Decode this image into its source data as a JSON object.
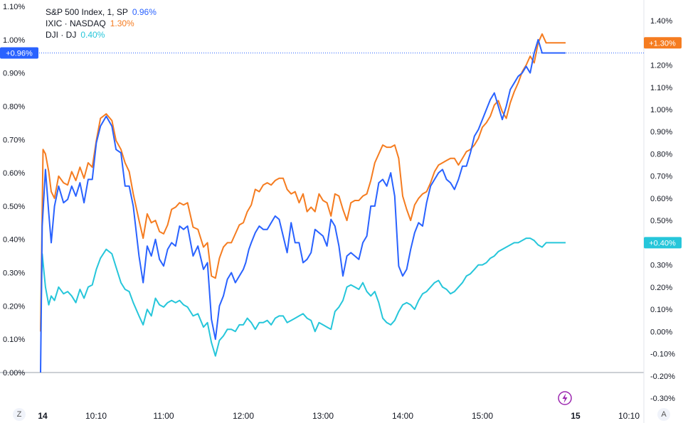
{
  "legend": {
    "spx": {
      "label": "S&P 500 Index, 1, SP",
      "value": "0.96%"
    },
    "ixic": {
      "label": "IXIC · NASDAQ",
      "value": "1.30%"
    },
    "dji": {
      "label": "DJI · DJ",
      "value": "0.40%"
    }
  },
  "badges": {
    "spx": "+0.96%",
    "ixic": "+1.30%",
    "dji": "+0.40%"
  },
  "buttons": {
    "left": "Z",
    "right": "A"
  },
  "chart_data": {
    "type": "line",
    "x_ticks": [
      "14",
      "10:10",
      "11:00",
      "12:00",
      "13:00",
      "14:00",
      "15:00",
      "15",
      "10:10"
    ],
    "left_axis": {
      "ticks": [
        "0.00%",
        "0.10%",
        "0.20%",
        "0.30%",
        "0.40%",
        "0.50%",
        "0.60%",
        "0.70%",
        "0.80%",
        "0.90%",
        "1.00%",
        "1.10%"
      ],
      "range": [
        0.0,
        1.1
      ]
    },
    "right_axis": {
      "ticks": [
        "-0.30%",
        "-0.20%",
        "-0.10%",
        "0.00%",
        "0.10%",
        "0.20%",
        "0.30%",
        "0.40%",
        "0.50%",
        "0.60%",
        "0.70%",
        "0.80%",
        "0.90%",
        "1.00%",
        "1.10%",
        "1.20%",
        "1.30%",
        "1.40%"
      ],
      "range": [
        -0.3,
        1.4
      ]
    },
    "x_range": [
      9.5,
      16.8
    ],
    "colors": {
      "spx": "#2962ff",
      "ixic": "#f57c20",
      "dji": "#26c6da",
      "badge_spx": "#2962ff",
      "badge_ixic": "#f57c20",
      "badge_dji": "#26c6da"
    },
    "series": [
      {
        "name": "S&P 500 Index, 1, SP",
        "key": "spx",
        "axis": "left",
        "x": [
          9.5,
          9.52,
          9.56,
          9.6,
          9.63,
          9.67,
          9.72,
          9.78,
          9.83,
          9.88,
          9.93,
          9.98,
          10.03,
          10.08,
          10.13,
          10.18,
          10.23,
          10.3,
          10.37,
          10.42,
          10.48,
          10.53,
          10.58,
          10.63,
          10.7,
          10.75,
          10.8,
          10.85,
          10.9,
          10.95,
          11.0,
          11.05,
          11.1,
          11.15,
          11.2,
          11.25,
          11.3,
          11.37,
          11.43,
          11.5,
          11.55,
          11.6,
          11.65,
          11.7,
          11.75,
          11.8,
          11.85,
          11.9,
          11.95,
          12.0,
          12.03,
          12.07,
          12.1,
          12.15,
          12.2,
          12.25,
          12.3,
          12.35,
          12.4,
          12.45,
          12.5,
          12.55,
          12.6,
          12.65,
          12.7,
          12.75,
          12.8,
          12.85,
          12.9,
          12.95,
          13.0,
          13.05,
          13.1,
          13.15,
          13.2,
          13.25,
          13.3,
          13.35,
          13.4,
          13.45,
          13.5,
          13.55,
          13.6,
          13.65,
          13.7,
          13.75,
          13.8,
          13.85,
          13.9,
          13.95,
          14.0,
          14.05,
          14.1,
          14.15,
          14.2,
          14.25,
          14.3,
          14.35,
          14.4,
          14.45,
          14.5,
          14.55,
          14.6,
          14.65,
          14.7,
          14.75,
          14.8,
          14.85,
          14.9,
          14.95,
          15.0,
          15.05,
          15.1,
          15.15,
          15.2,
          15.25,
          15.3,
          15.35,
          15.4,
          15.45,
          15.5,
          15.55,
          15.6,
          15.65,
          15.7,
          15.75,
          15.8,
          15.85
        ],
        "y": [
          0.0,
          0.44,
          0.61,
          0.48,
          0.39,
          0.5,
          0.56,
          0.51,
          0.52,
          0.56,
          0.53,
          0.57,
          0.51,
          0.58,
          0.58,
          0.69,
          0.74,
          0.77,
          0.74,
          0.67,
          0.66,
          0.56,
          0.56,
          0.5,
          0.35,
          0.27,
          0.38,
          0.35,
          0.4,
          0.34,
          0.32,
          0.37,
          0.39,
          0.38,
          0.44,
          0.43,
          0.44,
          0.35,
          0.38,
          0.31,
          0.33,
          0.16,
          0.1,
          0.2,
          0.23,
          0.28,
          0.3,
          0.27,
          0.29,
          0.31,
          0.33,
          0.37,
          0.39,
          0.42,
          0.44,
          0.43,
          0.43,
          0.45,
          0.47,
          0.46,
          0.41,
          0.36,
          0.45,
          0.39,
          0.39,
          0.33,
          0.34,
          0.36,
          0.43,
          0.42,
          0.41,
          0.38,
          0.46,
          0.44,
          0.38,
          0.29,
          0.35,
          0.36,
          0.35,
          0.34,
          0.39,
          0.41,
          0.5,
          0.5,
          0.57,
          0.58,
          0.56,
          0.6,
          0.53,
          0.32,
          0.29,
          0.31,
          0.37,
          0.42,
          0.45,
          0.44,
          0.51,
          0.56,
          0.58,
          0.6,
          0.61,
          0.58,
          0.57,
          0.55,
          0.58,
          0.62,
          0.62,
          0.66,
          0.71,
          0.73,
          0.76,
          0.79,
          0.82,
          0.84,
          0.8,
          0.76,
          0.8,
          0.85,
          0.87,
          0.89,
          0.9,
          0.92,
          0.9,
          0.96,
          1.0,
          0.96,
          0.96,
          0.96
        ]
      },
      {
        "name": "IXIC · NASDAQ",
        "key": "ixic",
        "axis": "right",
        "x": [
          9.5,
          9.53,
          9.56,
          9.6,
          9.63,
          9.67,
          9.72,
          9.78,
          9.83,
          9.88,
          9.93,
          9.98,
          10.03,
          10.08,
          10.13,
          10.18,
          10.23,
          10.3,
          10.37,
          10.42,
          10.48,
          10.53,
          10.58,
          10.63,
          10.7,
          10.75,
          10.8,
          10.85,
          10.9,
          10.95,
          11.0,
          11.05,
          11.1,
          11.15,
          11.2,
          11.25,
          11.3,
          11.37,
          11.43,
          11.5,
          11.55,
          11.6,
          11.65,
          11.7,
          11.75,
          11.8,
          11.85,
          11.9,
          11.95,
          12.0,
          12.05,
          12.1,
          12.15,
          12.2,
          12.25,
          12.3,
          12.35,
          12.4,
          12.45,
          12.5,
          12.55,
          12.6,
          12.65,
          12.7,
          12.75,
          12.8,
          12.85,
          12.9,
          12.95,
          13.0,
          13.05,
          13.1,
          13.15,
          13.2,
          13.25,
          13.3,
          13.35,
          13.4,
          13.45,
          13.5,
          13.55,
          13.6,
          13.65,
          13.7,
          13.75,
          13.8,
          13.85,
          13.9,
          13.95,
          14.0,
          14.05,
          14.1,
          14.15,
          14.2,
          14.25,
          14.3,
          14.35,
          14.4,
          14.45,
          14.5,
          14.55,
          14.6,
          14.65,
          14.7,
          14.75,
          14.8,
          14.85,
          14.9,
          14.95,
          15.0,
          15.05,
          15.1,
          15.15,
          15.2,
          15.25,
          15.3,
          15.35,
          15.4,
          15.45,
          15.5,
          15.55,
          15.6,
          15.65,
          15.7,
          15.75,
          15.8,
          15.85
        ],
        "y": [
          0.0,
          0.82,
          0.8,
          0.72,
          0.63,
          0.6,
          0.7,
          0.67,
          0.66,
          0.72,
          0.68,
          0.74,
          0.69,
          0.76,
          0.74,
          0.86,
          0.96,
          0.98,
          0.95,
          0.86,
          0.82,
          0.76,
          0.72,
          0.62,
          0.5,
          0.42,
          0.53,
          0.49,
          0.5,
          0.45,
          0.44,
          0.48,
          0.55,
          0.56,
          0.58,
          0.57,
          0.58,
          0.47,
          0.46,
          0.38,
          0.4,
          0.25,
          0.24,
          0.33,
          0.38,
          0.4,
          0.4,
          0.44,
          0.48,
          0.49,
          0.54,
          0.57,
          0.64,
          0.63,
          0.66,
          0.67,
          0.66,
          0.68,
          0.69,
          0.69,
          0.64,
          0.62,
          0.63,
          0.58,
          0.62,
          0.54,
          0.56,
          0.54,
          0.62,
          0.59,
          0.58,
          0.52,
          0.62,
          0.61,
          0.55,
          0.5,
          0.58,
          0.59,
          0.59,
          0.61,
          0.62,
          0.68,
          0.76,
          0.8,
          0.84,
          0.83,
          0.83,
          0.84,
          0.78,
          0.61,
          0.55,
          0.5,
          0.57,
          0.6,
          0.62,
          0.63,
          0.67,
          0.72,
          0.75,
          0.76,
          0.77,
          0.78,
          0.78,
          0.75,
          0.78,
          0.81,
          0.82,
          0.84,
          0.87,
          0.92,
          0.94,
          0.97,
          1.02,
          1.04,
          0.99,
          0.96,
          1.03,
          1.08,
          1.12,
          1.17,
          1.2,
          1.24,
          1.21,
          1.3,
          1.34,
          1.3,
          1.3
        ]
      },
      {
        "name": "DJI · DJ",
        "key": "dji",
        "axis": "right",
        "x": [
          9.5,
          9.52,
          9.56,
          9.6,
          9.63,
          9.67,
          9.72,
          9.78,
          9.83,
          9.88,
          9.93,
          9.98,
          10.03,
          10.08,
          10.13,
          10.18,
          10.23,
          10.3,
          10.37,
          10.42,
          10.48,
          10.53,
          10.58,
          10.63,
          10.7,
          10.75,
          10.8,
          10.85,
          10.9,
          10.95,
          11.0,
          11.05,
          11.1,
          11.15,
          11.2,
          11.25,
          11.3,
          11.37,
          11.43,
          11.5,
          11.55,
          11.6,
          11.65,
          11.7,
          11.75,
          11.8,
          11.85,
          11.9,
          11.95,
          12.0,
          12.05,
          12.1,
          12.15,
          12.2,
          12.25,
          12.3,
          12.35,
          12.4,
          12.45,
          12.5,
          12.55,
          12.6,
          12.65,
          12.7,
          12.75,
          12.8,
          12.85,
          12.9,
          12.95,
          13.0,
          13.05,
          13.1,
          13.15,
          13.2,
          13.25,
          13.3,
          13.35,
          13.4,
          13.45,
          13.5,
          13.55,
          13.6,
          13.65,
          13.7,
          13.75,
          13.8,
          13.85,
          13.9,
          13.95,
          14.0,
          14.05,
          14.1,
          14.15,
          14.2,
          14.25,
          14.3,
          14.35,
          14.4,
          14.45,
          14.5,
          14.55,
          14.6,
          14.65,
          14.7,
          14.75,
          14.8,
          14.85,
          14.9,
          14.95,
          15.0,
          15.05,
          15.1,
          15.15,
          15.2,
          15.25,
          15.3,
          15.35,
          15.4,
          15.45,
          15.5,
          15.55,
          15.6,
          15.65,
          15.7,
          15.75,
          15.8,
          15.85
        ],
        "y": [
          0.0,
          0.35,
          0.2,
          0.12,
          0.16,
          0.14,
          0.2,
          0.17,
          0.18,
          0.16,
          0.13,
          0.19,
          0.15,
          0.2,
          0.21,
          0.28,
          0.33,
          0.37,
          0.35,
          0.29,
          0.22,
          0.19,
          0.18,
          0.13,
          0.07,
          0.03,
          0.1,
          0.07,
          0.15,
          0.12,
          0.11,
          0.13,
          0.14,
          0.13,
          0.14,
          0.12,
          0.11,
          0.07,
          0.08,
          0.02,
          0.04,
          -0.05,
          -0.11,
          -0.04,
          -0.02,
          0.01,
          0.01,
          0.0,
          0.03,
          0.03,
          0.06,
          0.04,
          0.01,
          0.04,
          0.04,
          0.05,
          0.03,
          0.06,
          0.07,
          0.07,
          0.04,
          0.05,
          0.06,
          0.07,
          0.08,
          0.06,
          0.05,
          0.0,
          0.04,
          0.03,
          0.02,
          0.01,
          0.09,
          0.11,
          0.14,
          0.2,
          0.21,
          0.2,
          0.19,
          0.22,
          0.18,
          0.16,
          0.18,
          0.13,
          0.06,
          0.04,
          0.03,
          0.05,
          0.09,
          0.12,
          0.13,
          0.12,
          0.1,
          0.14,
          0.17,
          0.18,
          0.2,
          0.22,
          0.23,
          0.2,
          0.19,
          0.17,
          0.18,
          0.2,
          0.22,
          0.25,
          0.26,
          0.28,
          0.3,
          0.3,
          0.31,
          0.33,
          0.34,
          0.36,
          0.37,
          0.38,
          0.39,
          0.4,
          0.4,
          0.41,
          0.42,
          0.42,
          0.41,
          0.39,
          0.38,
          0.4,
          0.4
        ]
      }
    ]
  }
}
